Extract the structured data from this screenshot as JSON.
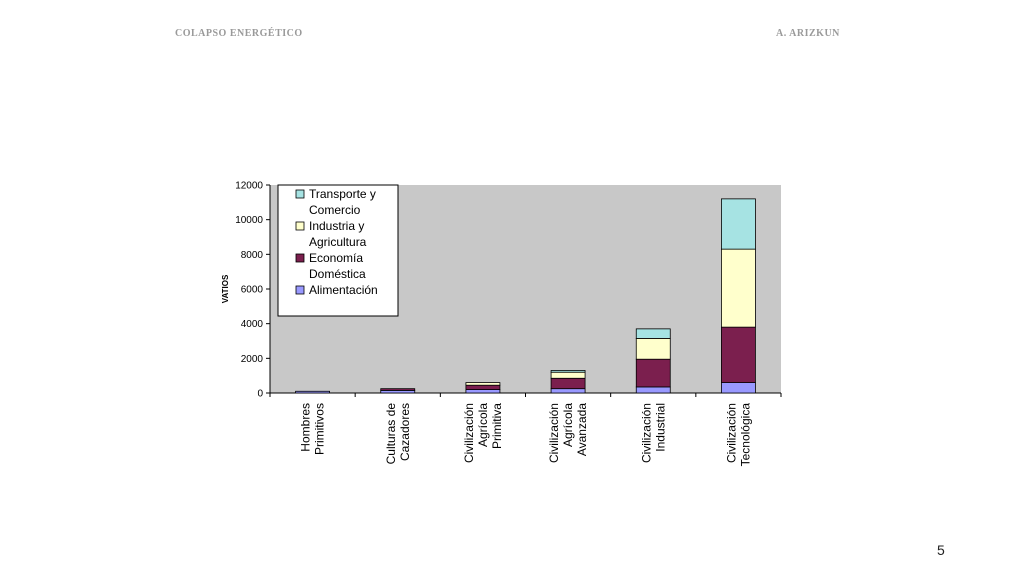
{
  "header": {
    "left": "COLAPSO ENERGÉTICO",
    "right": "A. ARIZKUN"
  },
  "page_number": "5",
  "chart_data": {
    "type": "bar",
    "stacked": true,
    "title": "",
    "xlabel": "",
    "ylabel": "VATIOS",
    "ylim": [
      0,
      12000
    ],
    "yticks": [
      0,
      2000,
      4000,
      6000,
      8000,
      10000,
      12000
    ],
    "grid": false,
    "legend_position": "top-left",
    "plot_background": "#c8c8c8",
    "categories": [
      [
        "Hombres",
        "Primitivos"
      ],
      [
        "Culturas de",
        "Cazadores"
      ],
      [
        "Civilización",
        "Agrícola",
        "Primitiva"
      ],
      [
        "Civilización",
        "Agrícola",
        "Avanzada"
      ],
      [
        "Civilización",
        "Industrial"
      ],
      [
        "Civilización",
        "Tecnológica"
      ]
    ],
    "series": [
      {
        "name": "Alimentación",
        "color": "#9999ff",
        "values": [
          100,
          150,
          200,
          250,
          350,
          600
        ]
      },
      {
        "name": "Economía Doméstica",
        "color": "#7b1f4e",
        "values": [
          0,
          100,
          250,
          600,
          1600,
          3200
        ]
      },
      {
        "name": "Industria y Agricultura",
        "color": "#ffffcc",
        "values": [
          0,
          0,
          150,
          350,
          1200,
          4500
        ]
      },
      {
        "name": "Transporte y Comercio",
        "color": "#a6e3e3",
        "values": [
          0,
          0,
          0,
          100,
          550,
          2900
        ]
      }
    ],
    "legend": [
      {
        "lines": [
          "Transporte y",
          "Comercio"
        ],
        "color": "#a6e3e3"
      },
      {
        "lines": [
          "Industria y",
          "Agricultura"
        ],
        "color": "#ffffcc"
      },
      {
        "lines": [
          "Economía",
          "Doméstica"
        ],
        "color": "#7b1f4e"
      },
      {
        "lines": [
          "Alimentación"
        ],
        "color": "#9999ff"
      }
    ]
  }
}
